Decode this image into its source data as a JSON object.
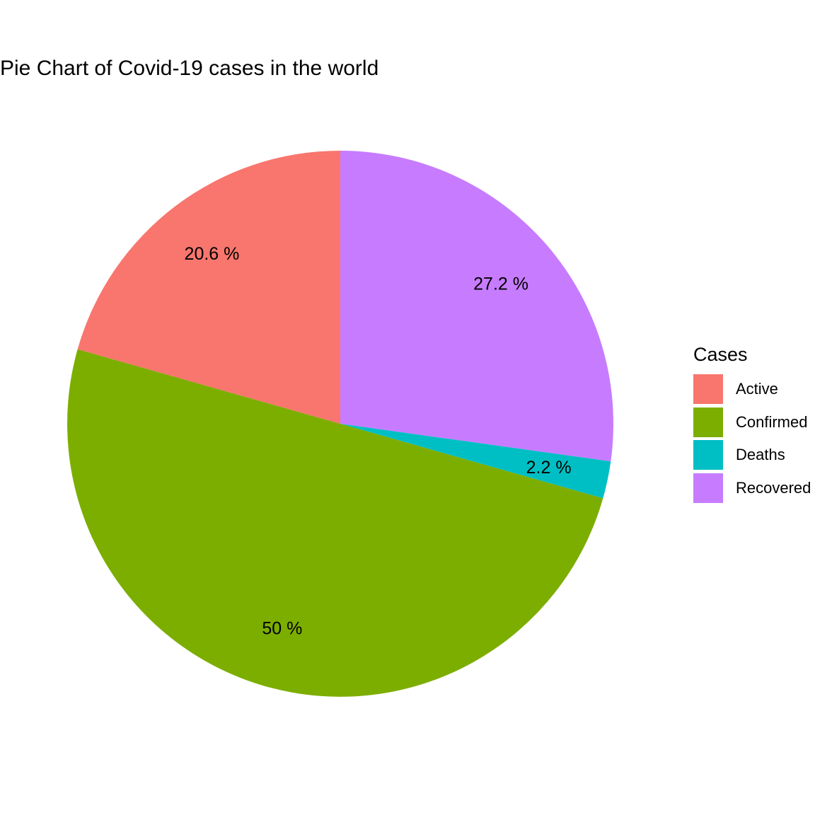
{
  "chart_data": {
    "type": "pie",
    "title": "Pie Chart of Covid-19 cases in the world",
    "legend_title": "Cases",
    "legend_position": "right",
    "slices": [
      {
        "name": "Active",
        "percent": 20.6,
        "label": "20.6 %",
        "color": "#F8766D"
      },
      {
        "name": "Confirmed",
        "percent": 50.0,
        "label": "50 %",
        "color": "#7CAE00"
      },
      {
        "name": "Deaths",
        "percent": 2.2,
        "label": "2.2 %",
        "color": "#00BFC4"
      },
      {
        "name": "Recovered",
        "percent": 27.2,
        "label": "27.2 %",
        "color": "#C77CFF"
      }
    ]
  }
}
